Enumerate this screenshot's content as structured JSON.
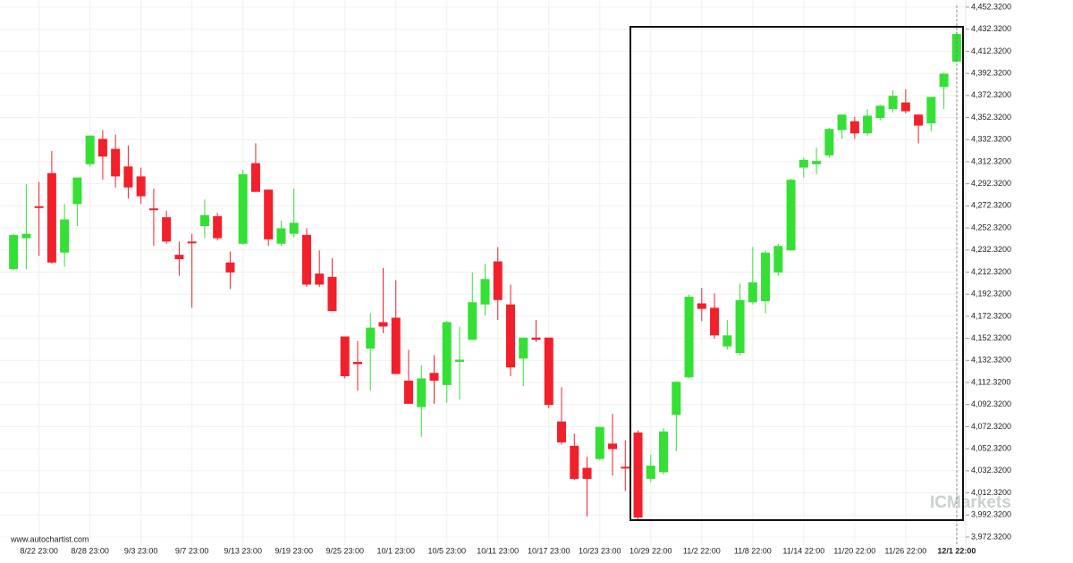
{
  "chart_data": {
    "type": "candlestick",
    "source": "www.autochartist.com",
    "watermark": "ICMarkets",
    "up_color": "#35e035",
    "down_color": "#f2202a",
    "grid": true,
    "ylim": [
      3965.0,
      4458.8
    ],
    "yticks": [
      {
        "value": 4452.32,
        "label": "4,452.3200"
      },
      {
        "value": 4432.32,
        "label": "4,432.3200"
      },
      {
        "value": 4412.32,
        "label": "4,412.3200"
      },
      {
        "value": 4392.32,
        "label": "4,392.3200"
      },
      {
        "value": 4372.32,
        "label": "4,372.3200"
      },
      {
        "value": 4352.32,
        "label": "4,352.3200"
      },
      {
        "value": 4332.32,
        "label": "4,332.3200"
      },
      {
        "value": 4312.32,
        "label": "4,312.3200"
      },
      {
        "value": 4292.32,
        "label": "4,292.3200"
      },
      {
        "value": 4272.32,
        "label": "4,272.3200"
      },
      {
        "value": 4252.32,
        "label": "4,252.3200"
      },
      {
        "value": 4232.32,
        "label": "4,232.3200"
      },
      {
        "value": 4212.32,
        "label": "4,212.3200"
      },
      {
        "value": 4192.32,
        "label": "4,192.3200"
      },
      {
        "value": 4172.32,
        "label": "4,172.3200"
      },
      {
        "value": 4152.32,
        "label": "4,152.3200"
      },
      {
        "value": 4132.32,
        "label": "4,132.3200"
      },
      {
        "value": 4112.32,
        "label": "4,112.3200"
      },
      {
        "value": 4092.32,
        "label": "4,092.3200"
      },
      {
        "value": 4072.32,
        "label": "4,072.3200"
      },
      {
        "value": 4052.32,
        "label": "4,052.3200"
      },
      {
        "value": 4032.32,
        "label": "4,032.3200"
      },
      {
        "value": 4012.32,
        "label": "4,012.3200"
      },
      {
        "value": 3992.32,
        "label": "3,992.3200"
      },
      {
        "value": 3972.32,
        "label": "3,972.3200"
      }
    ],
    "categories": [
      null,
      null,
      "8/22 23:00",
      null,
      null,
      null,
      "8/28 23:00",
      null,
      null,
      null,
      "9/3 23:00",
      null,
      null,
      null,
      "9/7 23:00",
      null,
      null,
      null,
      "9/13 23:00",
      null,
      null,
      null,
      "9/19 23:00",
      null,
      null,
      null,
      "9/25 23:00",
      null,
      null,
      null,
      "10/1 23:00",
      null,
      null,
      null,
      "10/5 23:00",
      null,
      null,
      null,
      "10/11 23:00",
      null,
      null,
      null,
      "10/17 23:00",
      null,
      null,
      null,
      "10/23 23:00",
      null,
      null,
      null,
      "10/29 22:00",
      null,
      null,
      null,
      "11/2 22:00",
      null,
      null,
      null,
      "11/8 22:00",
      null,
      null,
      null,
      "11/14 22:00",
      null,
      null,
      null,
      "11/20 22:00",
      null,
      null,
      null,
      "11/26 22:00",
      null,
      null,
      null,
      "12/1 22:00"
    ],
    "series": [
      {
        "open": [
          4215,
          4243,
          4272,
          4302,
          4230,
          4274,
          4310,
          4333,
          4324,
          4308,
          4299,
          4270,
          4262,
          4228,
          4240,
          4254,
          4263,
          4221,
          4238,
          4311,
          4287,
          4238,
          4247,
          4246,
          4211,
          4208,
          4154,
          4131,
          4143,
          4167,
          4171,
          4114,
          4090,
          4121,
          4110,
          4131,
          4151,
          4183,
          4222,
          4183,
          4134,
          4153,
          4153,
          4077,
          4055,
          4035,
          4043,
          4057,
          4036,
          4067,
          4025,
          4031,
          4083,
          4117,
          4184,
          4180,
          4145,
          4139,
          4185,
          4186,
          4212,
          4232,
          4307,
          4310,
          4318,
          4341,
          4349,
          4338,
          4352,
          4360,
          4366,
          4355,
          4347,
          4380,
          4403
        ],
        "high": [
          4247,
          4292,
          4294,
          4322,
          4274,
          4298,
          4336,
          4341,
          4337,
          4327,
          4307,
          4288,
          4268,
          4240,
          4247,
          4278,
          4266,
          4231,
          4305,
          4329,
          4287,
          4259,
          4288,
          4252,
          4232,
          4225,
          4154,
          4150,
          4175,
          4216,
          4205,
          4142,
          4128,
          4137,
          4168,
          4163,
          4212,
          4220,
          4235,
          4201,
          4153,
          4169,
          4153,
          4108,
          4066,
          4045,
          4072,
          4084,
          4060,
          4069,
          4047,
          4071,
          4113,
          4192,
          4198,
          4193,
          4169,
          4202,
          4235,
          4232,
          4238,
          4297,
          4316,
          4325,
          4343,
          4355,
          4353,
          4360,
          4364,
          4377,
          4378,
          4355,
          4371,
          4393,
          4430
        ],
        "low": [
          4214,
          4215,
          4227,
          4220,
          4217,
          4254,
          4308,
          4296,
          4289,
          4279,
          4274,
          4236,
          4238,
          4209,
          4180,
          4243,
          4241,
          4197,
          4237,
          4285,
          4236,
          4236,
          4244,
          4199,
          4199,
          4177,
          4116,
          4105,
          4105,
          4157,
          4120,
          4093,
          4063,
          4093,
          4094,
          4097,
          4151,
          4173,
          4169,
          4118,
          4109,
          4149,
          4089,
          4056,
          4024,
          3991,
          4042,
          4028,
          4014,
          3988,
          4022,
          4029,
          4050,
          4116,
          4168,
          4152,
          4142,
          4137,
          4183,
          4175,
          4209,
          4232,
          4298,
          4301,
          4316,
          4333,
          4333,
          4336,
          4350,
          4357,
          4356,
          4329,
          4340,
          4360,
          4402
        ],
        "close": [
          4246,
          4247,
          4271,
          4221,
          4260,
          4298,
          4336,
          4317,
          4299,
          4289,
          4281,
          4269,
          4240,
          4224,
          4239,
          4264,
          4243,
          4212,
          4301,
          4285,
          4242,
          4252,
          4257,
          4201,
          4201,
          4177,
          4118,
          4129,
          4162,
          4163,
          4120,
          4093,
          4116,
          4114,
          4167,
          4133,
          4185,
          4206,
          4187,
          4126,
          4153,
          4151,
          4092,
          4058,
          4025,
          4025,
          4072,
          4052,
          4035,
          3990,
          4037,
          4068,
          4113,
          4190,
          4179,
          4155,
          4155,
          4187,
          4203,
          4230,
          4236,
          4296,
          4314,
          4313,
          4342,
          4355,
          4338,
          4354,
          4363,
          4372,
          4358,
          4345,
          4371,
          4392,
          4428
        ]
      }
    ]
  }
}
